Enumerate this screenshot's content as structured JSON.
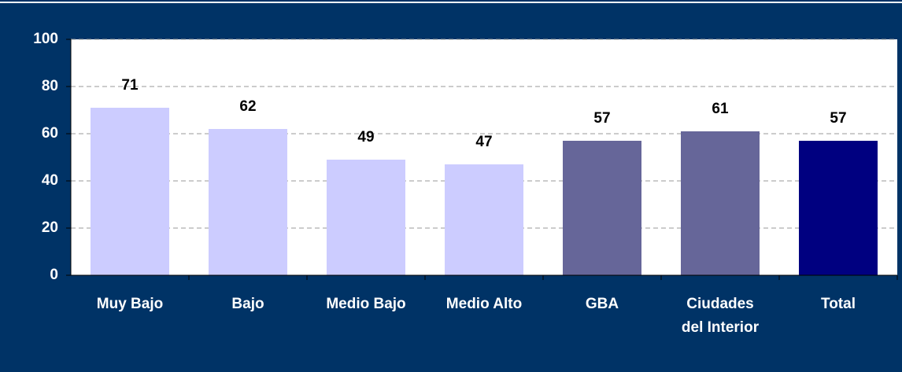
{
  "chart_data": {
    "type": "bar",
    "categories": [
      "Muy Bajo",
      "Bajo",
      "Medio Bajo",
      "Medio Alto",
      "GBA",
      "Ciudades del Interior",
      "Total"
    ],
    "values": [
      71,
      62,
      49,
      47,
      57,
      61,
      57
    ],
    "colors": [
      "#ccccff",
      "#ccccff",
      "#ccccff",
      "#ccccff",
      "#666699",
      "#666699",
      "#000080"
    ],
    "ylim": [
      0,
      100
    ],
    "yticks": [
      0,
      20,
      40,
      60,
      80,
      100
    ],
    "grid": true
  }
}
